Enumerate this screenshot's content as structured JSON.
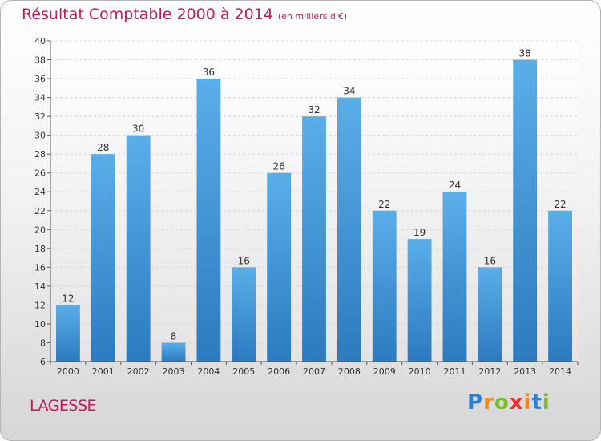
{
  "chart_data": {
    "type": "bar",
    "title": "Résultat Comptable 2000 à 2014",
    "subtitle": "(en milliers d'€)",
    "categories": [
      "2000",
      "2001",
      "2002",
      "2003",
      "2004",
      "2005",
      "2006",
      "2007",
      "2008",
      "2009",
      "2010",
      "2011",
      "2012",
      "2013",
      "2014"
    ],
    "values": [
      12,
      28,
      30,
      8,
      36,
      16,
      26,
      32,
      34,
      22,
      19,
      24,
      16,
      38,
      22
    ],
    "ylim": [
      6,
      40
    ],
    "ytick_step": 2,
    "grid": true,
    "bar_color_top": "#5aaee8",
    "bar_color_bottom": "#2c7ac0"
  },
  "footer": {
    "place": "LAGESSE",
    "logo_letters": [
      "P",
      "r",
      "o",
      "x",
      "i",
      "t",
      "i"
    ],
    "logo_colors": [
      "#2e7fd0",
      "#f08a1c",
      "#7cbd2a",
      "#e8322a",
      "#f08a1c",
      "#2e7fd0",
      "#7cbd2a"
    ]
  }
}
